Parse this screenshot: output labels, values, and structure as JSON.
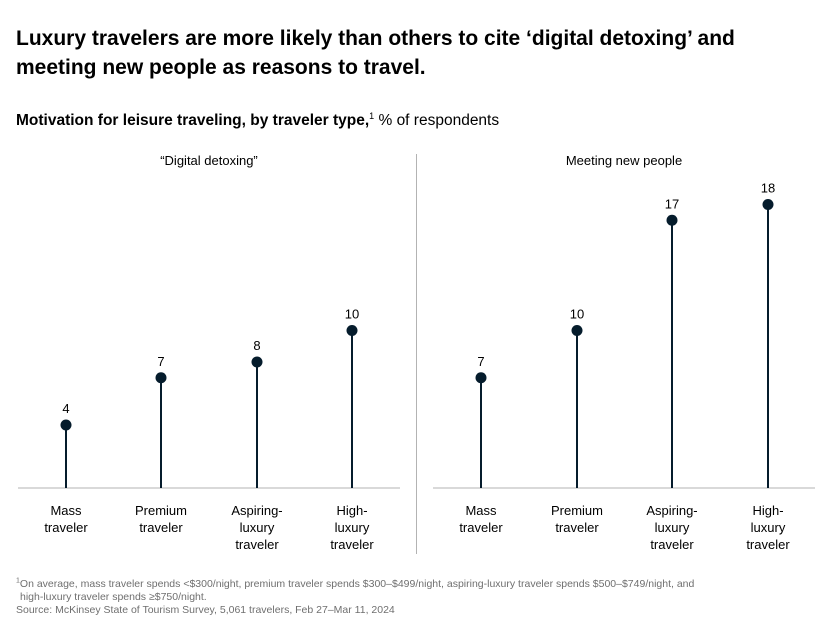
{
  "title": "Luxury travelers are more likely than others to cite ‘digital detoxing’ and meeting new people as reasons to travel.",
  "subtitle": {
    "bold": "Motivation for leisure traveling, by traveler type,",
    "sup": "1",
    "rest": " % of respondents"
  },
  "chart_data": [
    {
      "type": "lollipop",
      "title": "“Digital detoxing”",
      "categories": [
        [
          "Mass",
          "traveler"
        ],
        [
          "Premium",
          "traveler"
        ],
        [
          "Aspiring-",
          "luxury",
          "traveler"
        ],
        [
          "High-",
          "luxury",
          "traveler"
        ]
      ],
      "values": [
        4,
        7,
        8,
        10
      ],
      "ylim": [
        0,
        20
      ],
      "unit": "% of respondents"
    },
    {
      "type": "lollipop",
      "title": "Meeting new people",
      "categories": [
        [
          "Mass",
          "traveler"
        ],
        [
          "Premium",
          "traveler"
        ],
        [
          "Aspiring-",
          "luxury",
          "traveler"
        ],
        [
          "High-",
          "luxury",
          "traveler"
        ]
      ],
      "values": [
        7,
        10,
        17,
        18
      ],
      "ylim": [
        0,
        20
      ],
      "unit": "% of respondents"
    }
  ],
  "colors": {
    "stem": "#051c2c",
    "dot": "#051c2c",
    "baseline": "#b3b3b3",
    "divider": "#b3b3b3",
    "footnote": "#6f6f6f"
  },
  "footnote": {
    "sup": "1",
    "line1": "On average, mass traveler spends <$300/night, premium traveler spends $300–$499/night, aspiring-luxury traveler spends $500–$749/night, and",
    "line2": "high-luxury traveler spends ≥$750/night.",
    "source": "Source: McKinsey State of Tourism Survey, 5,061 travelers, Feb 27–Mar 11, 2024"
  }
}
